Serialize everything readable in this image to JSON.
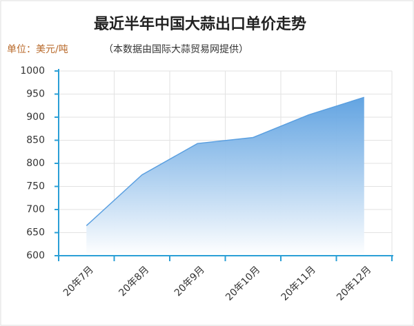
{
  "chart_data": {
    "type": "area",
    "title": "最近半年中国大蒜出口单价走势",
    "unit_label": "单位：美元/吨",
    "subtitle": "（本数据由国际大蒜贸易网提供）",
    "categories": [
      "20年7月",
      "20年8月",
      "20年9月",
      "20年10月",
      "20年11月",
      "20年12月"
    ],
    "values": [
      665,
      775,
      843,
      856,
      905,
      943
    ],
    "color": "#5a9fe0",
    "ylim": [
      600,
      1000
    ],
    "yticks": [
      600,
      650,
      700,
      750,
      800,
      850,
      900,
      950,
      1000
    ],
    "grid": true
  }
}
